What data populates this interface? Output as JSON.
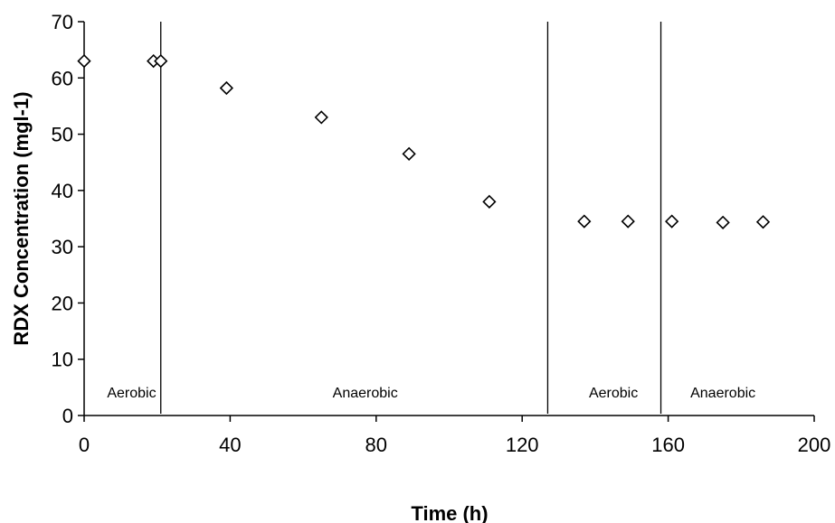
{
  "chart_data": {
    "type": "scatter",
    "title": "",
    "xlabel": "Time (h)",
    "ylabel": "RDX Concentration (mgl-1)",
    "xlim": [
      0,
      200
    ],
    "ylim": [
      0,
      70
    ],
    "x_ticks": [
      0,
      40,
      80,
      120,
      160,
      200
    ],
    "y_ticks": [
      0,
      10,
      20,
      30,
      40,
      50,
      60,
      70
    ],
    "grid": false,
    "legend": "none",
    "marker": "open-diamond",
    "series": [
      {
        "x": [
          0,
          19,
          21,
          39,
          65,
          89,
          111,
          137,
          149,
          161,
          175,
          186
        ],
        "y": [
          63,
          63,
          63,
          58.2,
          53,
          46.5,
          38,
          34.5,
          34.5,
          34.5,
          34.3,
          34.4
        ]
      }
    ],
    "phase_boundaries": [
      21,
      127,
      158
    ],
    "phase_labels": [
      {
        "text": "Aerobic",
        "x": 13
      },
      {
        "text": "Anaerobic",
        "x": 77
      },
      {
        "text": "Aerobic",
        "x": 145
      },
      {
        "text": "Anaerobic",
        "x": 175
      }
    ]
  }
}
